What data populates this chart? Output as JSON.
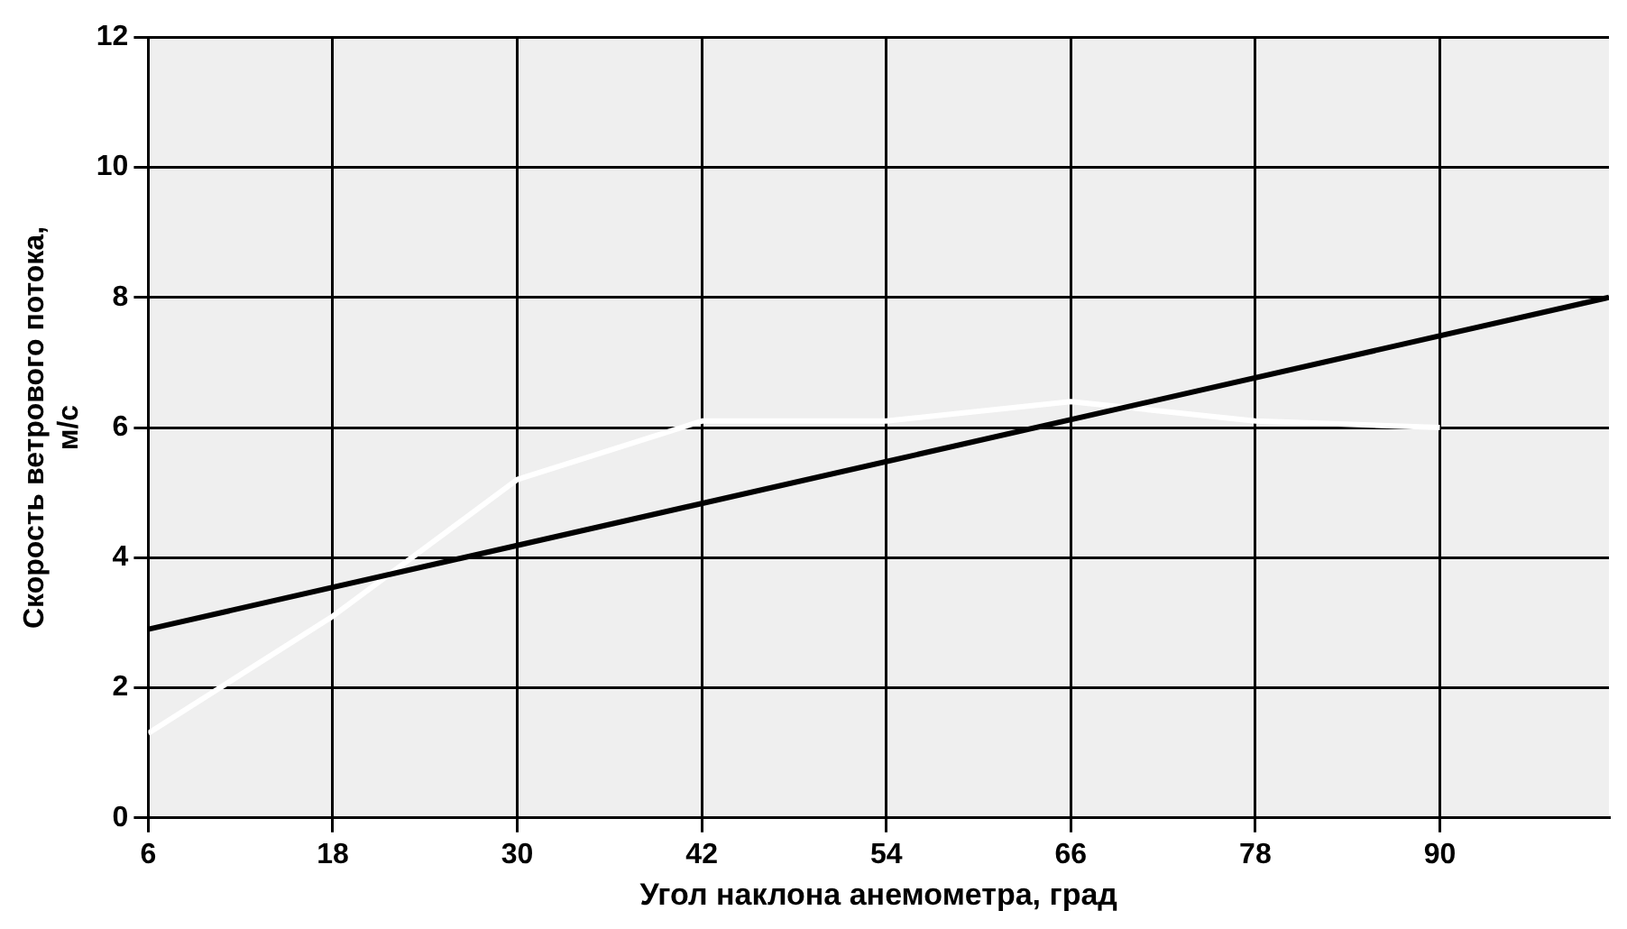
{
  "chart_data": {
    "type": "line",
    "xlabel": "Угол наклона анемометра, град",
    "ylabel": "Скорость ветрового потока, м/с",
    "series": [
      {
        "color": "#000000",
        "x": [
          6,
          101
        ],
        "values": [
          2.9,
          8
        ]
      },
      {
        "color": "#ffffff",
        "x": [
          6,
          18,
          30,
          42,
          54,
          66,
          78,
          90
        ],
        "values": [
          1.3,
          3.1,
          5.2,
          6.1,
          6.1,
          6.4,
          6.1,
          6.0
        ]
      }
    ],
    "xlim": [
      6,
      101
    ],
    "xticks": [
      6,
      18,
      30,
      42,
      54,
      66,
      78,
      90
    ],
    "ylim": [
      0,
      12
    ],
    "yticks": [
      0,
      2,
      4,
      6,
      8,
      10,
      12
    ],
    "grid": true,
    "legend": false,
    "marker": "none",
    "line_style": "solid"
  }
}
